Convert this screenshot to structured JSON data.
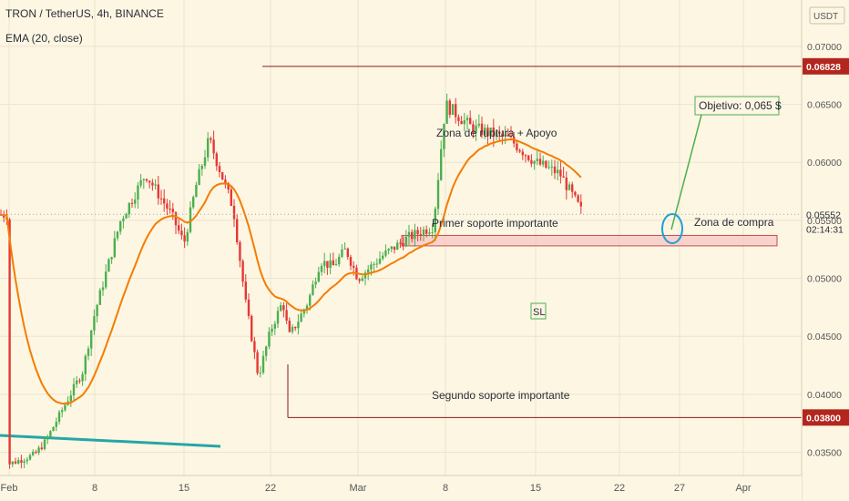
{
  "header": {
    "title": "TRON / TetherUS, 4h, BINANCE",
    "indicator": "EMA (20, close)"
  },
  "currency_button": "USDT",
  "colors": {
    "background": "#fdf6e3",
    "up": "#4caf50",
    "down": "#e53935",
    "ema": "#f57c00",
    "trendline": "#26a6a6",
    "level": "#8b1a1a",
    "zone_fill": "#f4c7c3",
    "zone_border": "#c94c4c",
    "callout": "#4caf50",
    "circle": "#1f9fd6"
  },
  "chart_data": {
    "type": "candlestick",
    "symbol": "TRON / TetherUS",
    "interval": "4h",
    "exchange": "BINANCE",
    "indicator": "EMA (20, close)",
    "ylim": [
      0.033,
      0.074
    ],
    "y_ticks": [
      "0.07000",
      "0.06500",
      "0.06000",
      "0.05500",
      "0.05000",
      "0.04500",
      "0.04000",
      "0.03500"
    ],
    "x_ticks": [
      "Feb",
      "8",
      "15",
      "22",
      "Mar",
      "8",
      "15",
      "22",
      "27",
      "Apr"
    ],
    "price_path": [
      [
        "Feb",
        0.034
      ],
      [
        "4",
        0.0348
      ],
      [
        "7",
        0.036
      ],
      [
        "8",
        0.042
      ],
      [
        "9",
        0.047
      ],
      [
        "11",
        0.055
      ],
      [
        "13",
        0.059
      ],
      [
        "15",
        0.0555
      ],
      [
        "16",
        0.053
      ],
      [
        "18",
        0.058
      ],
      [
        "19",
        0.062
      ],
      [
        "21",
        0.059
      ],
      [
        "22",
        0.056
      ],
      [
        "23",
        0.048
      ],
      [
        "23.5",
        0.0415
      ],
      [
        "24",
        0.0455
      ],
      [
        "25",
        0.048
      ],
      [
        "27",
        0.045
      ],
      [
        "Mar",
        0.046
      ],
      [
        "3",
        0.048
      ],
      [
        "5",
        0.0515
      ],
      [
        "8",
        0.051
      ],
      [
        "10",
        0.0525
      ],
      [
        "13",
        0.05
      ],
      [
        "15",
        0.052
      ],
      [
        "17",
        0.0535
      ],
      [
        "19",
        0.0545
      ],
      [
        "20",
        0.065
      ],
      [
        "21",
        0.063
      ],
      [
        "22",
        0.062
      ],
      [
        "23",
        0.06
      ],
      [
        "24",
        0.059
      ],
      [
        "25",
        0.0555
      ]
    ],
    "levels": [
      {
        "label": "0.06828",
        "value": 0.06828
      },
      {
        "label": "0.03800",
        "value": 0.038
      }
    ],
    "current_price": {
      "label": "0.05552",
      "value": 0.05552,
      "countdown": "02:14:31"
    },
    "support_zone": {
      "low": 0.0528,
      "high": 0.0537
    },
    "annotations": [
      "Zona de ruptura + Apoyo",
      "Primer soporte importante",
      "Zona de compra",
      "Segundo soporte importante",
      "SL",
      "Objetivo: 0,065 $"
    ]
  }
}
